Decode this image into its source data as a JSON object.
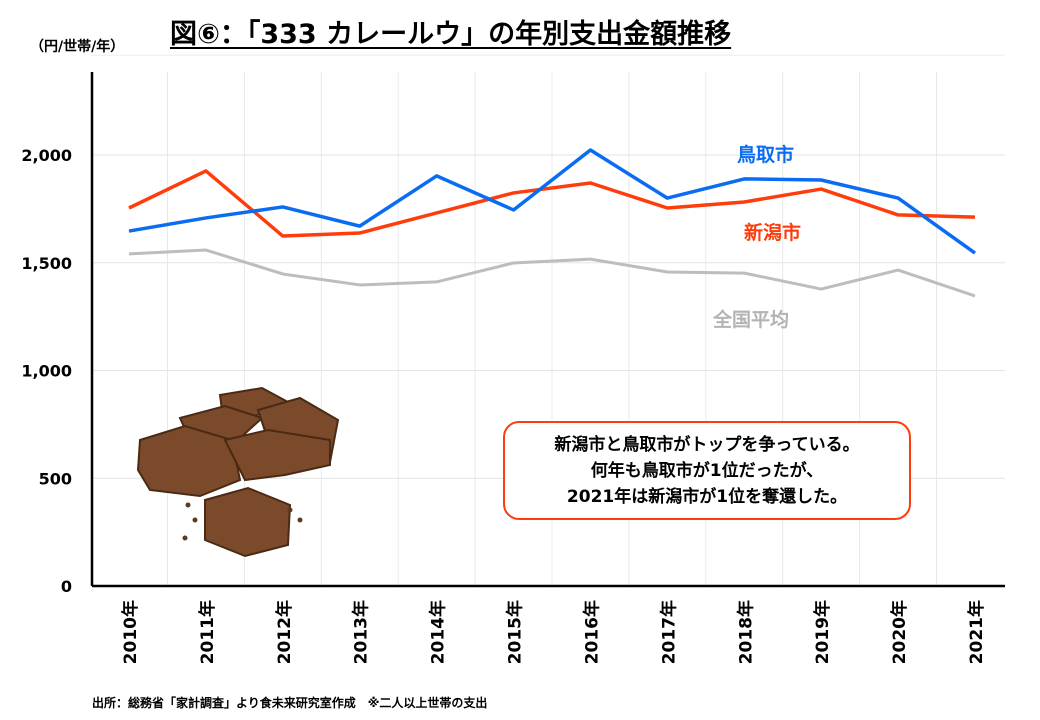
{
  "title": "図⑥：「333 カレールウ」の年別支出金額推移",
  "unit_label": "（円/世帯/年）",
  "source": "出所：総務省「家計調査」より食未来研究室作成　※二人以上世帯の支出",
  "callout": {
    "lines": [
      "新潟市と鳥取市がトップを争っている。",
      "何年も鳥取市が1位だったが、",
      "2021年は新潟市が1位を奪還した。"
    ]
  },
  "chart_data": {
    "type": "line",
    "title": "図⑥：「333 カレールウ」の年別支出金額推移",
    "ylabel": "（円/世帯/年）",
    "xlabel": "",
    "categories": [
      "2010年",
      "2011年",
      "2012年",
      "2013年",
      "2014年",
      "2015年",
      "2016年",
      "2017年",
      "2018年",
      "2019年",
      "2020年",
      "2021年"
    ],
    "ylim": [
      0,
      2400
    ],
    "yticks": [
      0,
      500,
      1000,
      1500,
      2000
    ],
    "ytick_labels": [
      "0",
      "500",
      "1,000",
      "1,500",
      "2,000"
    ],
    "grid": true,
    "series": [
      {
        "name": "鳥取市",
        "color": "#0a6cf0",
        "values": [
          1647,
          1708,
          1759,
          1670,
          1903,
          1745,
          2023,
          1800,
          1889,
          1884,
          1800,
          1545
        ]
      },
      {
        "name": "新潟市",
        "color": "#ff3d0c",
        "values": [
          1754,
          1926,
          1624,
          1638,
          1731,
          1824,
          1870,
          1754,
          1782,
          1842,
          1722,
          1712
        ]
      },
      {
        "name": "全国平均",
        "color": "#bdbdbd",
        "values": [
          1541,
          1559,
          1448,
          1397,
          1411,
          1499,
          1517,
          1457,
          1452,
          1378,
          1466,
          1346
        ]
      }
    ]
  }
}
